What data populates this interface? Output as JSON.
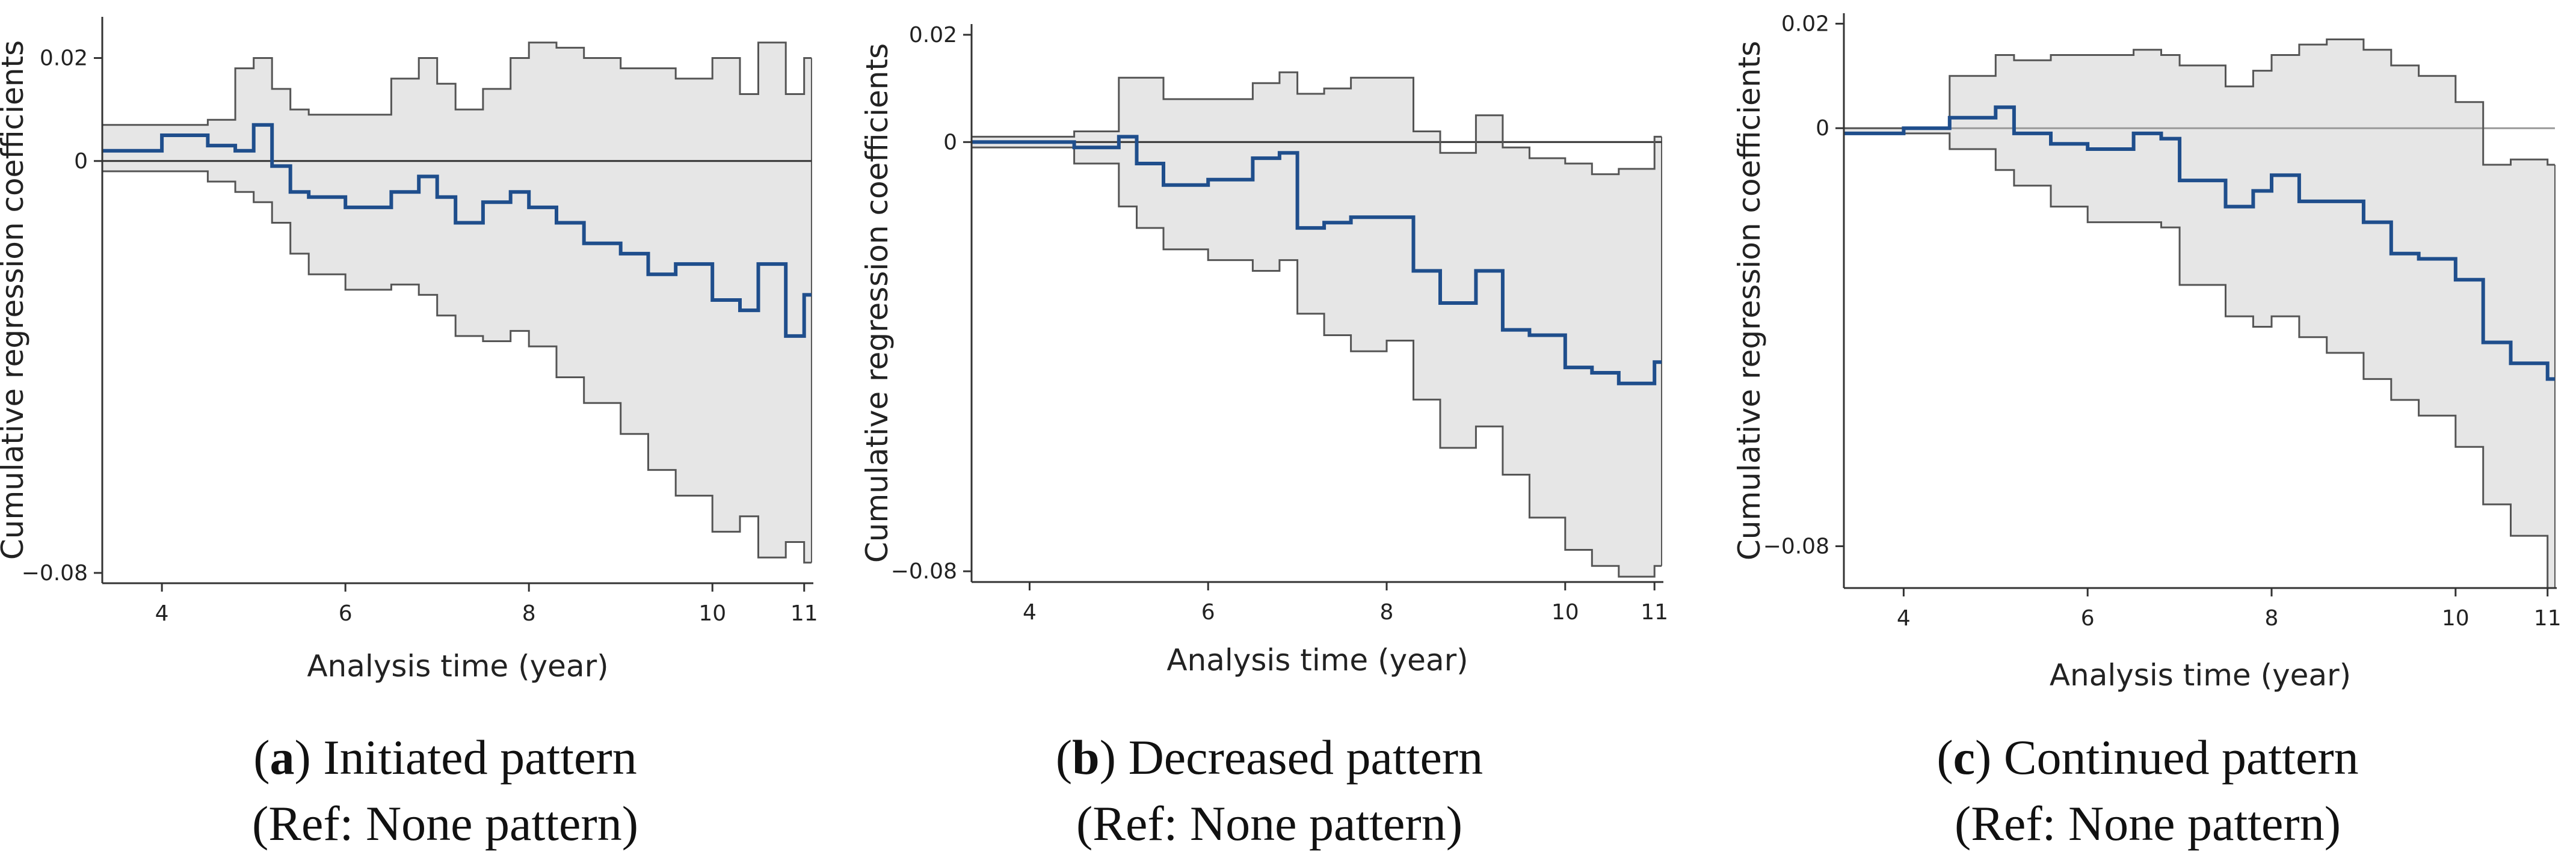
{
  "chart_data": [
    {
      "type": "line",
      "panel_letter": "a",
      "caption_text": ") Initiated pattern",
      "caption_ref": "(Ref: None pattern)",
      "xlabel": "Analysis time (year)",
      "ylabel": "Cumulative regression coefficients",
      "xlim": [
        3.35,
        11.1
      ],
      "ylim": [
        -0.082,
        0.028
      ],
      "xticks": [
        4,
        6,
        8,
        10,
        11
      ],
      "yticks": [
        0.02,
        0,
        -0.08
      ],
      "ytick_labels": [
        "0.02",
        "0",
        "−0.08"
      ],
      "reference_line": 0,
      "colors": {
        "estimate": "#1f4e8c",
        "band": "#e6e6e6",
        "bounds": "#555555",
        "reference": "#333333"
      },
      "x": [
        3.35,
        4.0,
        4.5,
        4.8,
        5.0,
        5.2,
        5.4,
        5.6,
        6.0,
        6.5,
        6.8,
        7.0,
        7.2,
        7.5,
        7.8,
        8.0,
        8.3,
        8.6,
        9.0,
        9.3,
        9.6,
        10.0,
        10.3,
        10.5,
        10.8,
        11.0
      ],
      "series": [
        {
          "name": "estimate",
          "values": [
            0.002,
            0.005,
            0.003,
            0.002,
            0.007,
            -0.001,
            -0.006,
            -0.007,
            -0.009,
            -0.006,
            -0.003,
            -0.007,
            -0.012,
            -0.008,
            -0.006,
            -0.009,
            -0.012,
            -0.016,
            -0.018,
            -0.022,
            -0.02,
            -0.027,
            -0.029,
            -0.02,
            -0.034,
            -0.026
          ]
        },
        {
          "name": "upper",
          "values": [
            0.007,
            0.007,
            0.008,
            0.018,
            0.02,
            0.014,
            0.01,
            0.009,
            0.009,
            0.016,
            0.02,
            0.015,
            0.01,
            0.014,
            0.02,
            0.023,
            0.022,
            0.02,
            0.018,
            0.018,
            0.016,
            0.02,
            0.013,
            0.023,
            0.013,
            0.02
          ]
        },
        {
          "name": "lower",
          "values": [
            -0.002,
            -0.002,
            -0.004,
            -0.006,
            -0.008,
            -0.012,
            -0.018,
            -0.022,
            -0.025,
            -0.024,
            -0.026,
            -0.03,
            -0.034,
            -0.035,
            -0.033,
            -0.036,
            -0.042,
            -0.047,
            -0.053,
            -0.06,
            -0.065,
            -0.072,
            -0.069,
            -0.077,
            -0.074,
            -0.078
          ]
        }
      ]
    },
    {
      "type": "line",
      "panel_letter": "b",
      "caption_text": ") Decreased pattern",
      "caption_ref": "(Ref: None pattern)",
      "xlabel": "Analysis time (year)",
      "ylabel": "Cumulative regression coefficients",
      "xlim": [
        3.35,
        11.1
      ],
      "ylim": [
        -0.082,
        0.022
      ],
      "xticks": [
        4,
        6,
        8,
        10,
        11
      ],
      "yticks": [
        0.02,
        0,
        -0.08
      ],
      "ytick_labels": [
        "0.02",
        "0",
        "−0.08"
      ],
      "reference_line": 0,
      "colors": {
        "estimate": "#1f4e8c",
        "band": "#e6e6e6",
        "bounds": "#555555",
        "reference": "#333333"
      },
      "x": [
        3.35,
        4.0,
        4.5,
        5.0,
        5.2,
        5.5,
        6.0,
        6.5,
        6.8,
        7.0,
        7.3,
        7.6,
        8.0,
        8.3,
        8.6,
        9.0,
        9.3,
        9.6,
        10.0,
        10.3,
        10.6,
        11.0
      ],
      "series": [
        {
          "name": "estimate",
          "values": [
            0.0,
            0.0,
            -0.001,
            0.001,
            -0.004,
            -0.008,
            -0.007,
            -0.003,
            -0.002,
            -0.016,
            -0.015,
            -0.014,
            -0.014,
            -0.024,
            -0.03,
            -0.024,
            -0.035,
            -0.036,
            -0.042,
            -0.043,
            -0.045,
            -0.041
          ]
        },
        {
          "name": "upper",
          "values": [
            0.001,
            0.001,
            0.002,
            0.012,
            0.012,
            0.008,
            0.008,
            0.011,
            0.013,
            0.009,
            0.01,
            0.012,
            0.012,
            0.002,
            -0.002,
            0.005,
            -0.001,
            -0.003,
            -0.004,
            -0.006,
            -0.005,
            0.001
          ]
        },
        {
          "name": "lower",
          "values": [
            -0.001,
            -0.001,
            -0.004,
            -0.012,
            -0.016,
            -0.02,
            -0.022,
            -0.024,
            -0.022,
            -0.032,
            -0.036,
            -0.039,
            -0.037,
            -0.048,
            -0.057,
            -0.053,
            -0.062,
            -0.07,
            -0.076,
            -0.079,
            -0.081,
            -0.079
          ]
        }
      ]
    },
    {
      "type": "line",
      "panel_letter": "c",
      "caption_text": ") Continued pattern",
      "caption_ref": "(Ref: None pattern)",
      "xlabel": "Analysis time (year)",
      "ylabel": "Cumulative regression coefficients",
      "xlim": [
        3.35,
        11.1
      ],
      "ylim": [
        -0.088,
        0.022
      ],
      "xticks": [
        4,
        6,
        8,
        10,
        11
      ],
      "yticks": [
        0.02,
        0,
        -0.08
      ],
      "ytick_labels": [
        "0.02",
        "0",
        "−0.08"
      ],
      "reference_line": 0,
      "colors": {
        "estimate": "#1f4e8c",
        "band": "#e6e6e6",
        "bounds": "#555555",
        "reference": "#999999"
      },
      "x": [
        3.35,
        4.0,
        4.5,
        5.0,
        5.2,
        5.6,
        6.0,
        6.5,
        6.8,
        7.0,
        7.5,
        7.8,
        8.0,
        8.3,
        8.6,
        9.0,
        9.3,
        9.6,
        10.0,
        10.3,
        10.6,
        11.0
      ],
      "series": [
        {
          "name": "estimate",
          "values": [
            -0.001,
            0.0,
            0.002,
            0.004,
            -0.001,
            -0.003,
            -0.004,
            -0.001,
            -0.002,
            -0.01,
            -0.015,
            -0.012,
            -0.009,
            -0.014,
            -0.014,
            -0.018,
            -0.024,
            -0.025,
            -0.029,
            -0.041,
            -0.045,
            -0.048
          ]
        },
        {
          "name": "upper",
          "values": [
            0.0,
            0.0,
            0.01,
            0.014,
            0.013,
            0.014,
            0.014,
            0.015,
            0.014,
            0.012,
            0.008,
            0.011,
            0.014,
            0.016,
            0.017,
            0.015,
            0.012,
            0.01,
            0.005,
            -0.007,
            -0.006,
            -0.007
          ]
        },
        {
          "name": "lower",
          "values": [
            -0.001,
            -0.001,
            -0.004,
            -0.008,
            -0.011,
            -0.015,
            -0.018,
            -0.018,
            -0.019,
            -0.03,
            -0.036,
            -0.038,
            -0.036,
            -0.04,
            -0.043,
            -0.048,
            -0.052,
            -0.055,
            -0.061,
            -0.072,
            -0.078,
            -0.088
          ]
        }
      ]
    }
  ]
}
